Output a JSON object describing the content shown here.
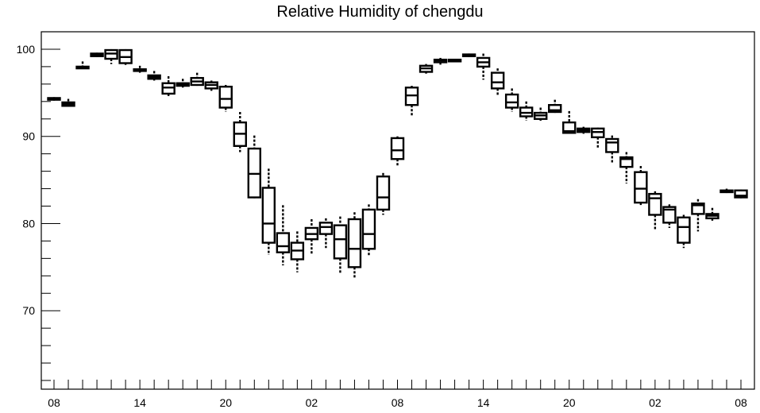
{
  "chart_data": {
    "type": "boxplot",
    "title": "Relative Humidity of chengdu",
    "xlabel": "",
    "ylabel": "",
    "ylim": [
      61,
      102
    ],
    "y_ticks": [
      70,
      80,
      90,
      100
    ],
    "x_tick_labels": [
      "08",
      "14",
      "20",
      "02",
      "08",
      "14",
      "20",
      "02",
      "08"
    ],
    "x_tick_slots": [
      0,
      6,
      12,
      18,
      24,
      30,
      36,
      42,
      48
    ],
    "slot_count": 49,
    "grid": false,
    "boxes": [
      {
        "slot": 0,
        "min": 94.1,
        "q1": 94.2,
        "median": 94.3,
        "q3": 94.4,
        "max": 94.5
      },
      {
        "slot": 1,
        "min": 93.4,
        "q1": 93.5,
        "median": 93.7,
        "q3": 93.9,
        "max": 94.3
      },
      {
        "slot": 2,
        "min": 97.8,
        "q1": 97.8,
        "median": 97.9,
        "q3": 98.0,
        "max": 98.6
      },
      {
        "slot": 3,
        "min": 99.1,
        "q1": 99.2,
        "median": 99.3,
        "q3": 99.5,
        "max": 99.6
      },
      {
        "slot": 4,
        "min": 98.3,
        "q1": 98.9,
        "median": 99.5,
        "q3": 99.9,
        "max": 100.0
      },
      {
        "slot": 5,
        "min": 98.2,
        "q1": 98.4,
        "median": 99.1,
        "q3": 99.9,
        "max": 100.0
      },
      {
        "slot": 6,
        "min": 97.3,
        "q1": 97.5,
        "median": 97.6,
        "q3": 97.7,
        "max": 98.1
      },
      {
        "slot": 7,
        "min": 96.4,
        "q1": 96.6,
        "median": 96.8,
        "q3": 97.0,
        "max": 97.5
      },
      {
        "slot": 8,
        "min": 94.5,
        "q1": 94.9,
        "median": 95.6,
        "q3": 96.1,
        "max": 96.9
      },
      {
        "slot": 9,
        "min": 95.6,
        "q1": 95.8,
        "median": 96.0,
        "q3": 96.1,
        "max": 96.6
      },
      {
        "slot": 10,
        "min": 95.8,
        "q1": 95.9,
        "median": 96.3,
        "q3": 96.7,
        "max": 97.3
      },
      {
        "slot": 11,
        "min": 95.1,
        "q1": 95.5,
        "median": 95.9,
        "q3": 96.2,
        "max": 96.4
      },
      {
        "slot": 12,
        "min": 92.8,
        "q1": 93.3,
        "median": 94.3,
        "q3": 95.7,
        "max": 95.9
      },
      {
        "slot": 13,
        "min": 88.2,
        "q1": 88.9,
        "median": 90.3,
        "q3": 91.6,
        "max": 92.8
      },
      {
        "slot": 14,
        "min": 82.9,
        "q1": 83.0,
        "median": 85.7,
        "q3": 88.6,
        "max": 90.1
      },
      {
        "slot": 15,
        "min": 76.4,
        "q1": 77.8,
        "median": 80.0,
        "q3": 84.1,
        "max": 86.3
      },
      {
        "slot": 16,
        "min": 75.2,
        "q1": 76.7,
        "median": 77.4,
        "q3": 78.9,
        "max": 82.1
      },
      {
        "slot": 17,
        "min": 74.4,
        "q1": 75.9,
        "median": 76.9,
        "q3": 77.8,
        "max": 79.1
      },
      {
        "slot": 18,
        "min": 76.5,
        "q1": 78.2,
        "median": 78.8,
        "q3": 79.5,
        "max": 80.5
      },
      {
        "slot": 19,
        "min": 77.2,
        "q1": 78.8,
        "median": 79.6,
        "q3": 80.1,
        "max": 80.6
      },
      {
        "slot": 20,
        "min": 74.3,
        "q1": 76.0,
        "median": 78.2,
        "q3": 79.8,
        "max": 80.8
      },
      {
        "slot": 21,
        "min": 73.8,
        "q1": 75.0,
        "median": 77.1,
        "q3": 80.5,
        "max": 81.3
      },
      {
        "slot": 22,
        "min": 76.3,
        "q1": 77.1,
        "median": 78.8,
        "q3": 81.6,
        "max": 82.2
      },
      {
        "slot": 23,
        "min": 81.0,
        "q1": 81.6,
        "median": 83.0,
        "q3": 85.4,
        "max": 85.8
      },
      {
        "slot": 24,
        "min": 86.6,
        "q1": 87.4,
        "median": 88.4,
        "q3": 89.8,
        "max": 90.0
      },
      {
        "slot": 25,
        "min": 92.4,
        "q1": 93.6,
        "median": 94.7,
        "q3": 95.6,
        "max": 95.8
      },
      {
        "slot": 26,
        "min": 97.2,
        "q1": 97.4,
        "median": 97.8,
        "q3": 98.1,
        "max": 98.3
      },
      {
        "slot": 27,
        "min": 98.2,
        "q1": 98.5,
        "median": 98.7,
        "q3": 98.8,
        "max": 99.0
      },
      {
        "slot": 28,
        "min": 98.6,
        "q1": 98.6,
        "median": 98.7,
        "q3": 98.8,
        "max": 98.9
      },
      {
        "slot": 29,
        "min": 99.1,
        "q1": 99.2,
        "median": 99.3,
        "q3": 99.4,
        "max": 99.5
      },
      {
        "slot": 30,
        "min": 96.5,
        "q1": 98.0,
        "median": 98.5,
        "q3": 99.0,
        "max": 99.5
      },
      {
        "slot": 31,
        "min": 94.6,
        "q1": 95.5,
        "median": 96.2,
        "q3": 97.3,
        "max": 97.8
      },
      {
        "slot": 32,
        "min": 92.8,
        "q1": 93.3,
        "median": 93.9,
        "q3": 94.8,
        "max": 95.5
      },
      {
        "slot": 33,
        "min": 91.8,
        "q1": 92.3,
        "median": 92.7,
        "q3": 93.3,
        "max": 94.0
      },
      {
        "slot": 34,
        "min": 91.8,
        "q1": 92.0,
        "median": 92.4,
        "q3": 92.7,
        "max": 93.3
      },
      {
        "slot": 35,
        "min": 92.7,
        "q1": 92.8,
        "median": 93.0,
        "q3": 93.6,
        "max": 94.2
      },
      {
        "slot": 36,
        "min": 90.3,
        "q1": 90.4,
        "median": 90.6,
        "q3": 91.6,
        "max": 92.9
      },
      {
        "slot": 37,
        "min": 90.3,
        "q1": 90.5,
        "median": 90.7,
        "q3": 90.9,
        "max": 91.1
      },
      {
        "slot": 38,
        "min": 88.6,
        "q1": 89.9,
        "median": 90.5,
        "q3": 90.9,
        "max": 91.0
      },
      {
        "slot": 39,
        "min": 87.0,
        "q1": 88.2,
        "median": 89.3,
        "q3": 89.7,
        "max": 90.1
      },
      {
        "slot": 40,
        "min": 84.6,
        "q1": 86.5,
        "median": 87.4,
        "q3": 87.6,
        "max": 88.2
      },
      {
        "slot": 41,
        "min": 82.1,
        "q1": 82.4,
        "median": 84.0,
        "q3": 85.9,
        "max": 86.6
      },
      {
        "slot": 42,
        "min": 79.3,
        "q1": 81.0,
        "median": 82.9,
        "q3": 83.4,
        "max": 83.7
      },
      {
        "slot": 43,
        "min": 79.5,
        "q1": 80.1,
        "median": 81.6,
        "q3": 81.9,
        "max": 82.2
      },
      {
        "slot": 44,
        "min": 77.2,
        "q1": 77.8,
        "median": 79.6,
        "q3": 80.7,
        "max": 81.0
      },
      {
        "slot": 45,
        "min": 79.1,
        "q1": 81.1,
        "median": 82.1,
        "q3": 82.3,
        "max": 82.8
      },
      {
        "slot": 46,
        "min": 80.2,
        "q1": 80.6,
        "median": 80.9,
        "q3": 81.1,
        "max": 81.8
      },
      {
        "slot": 47,
        "min": 83.5,
        "q1": 83.6,
        "median": 83.7,
        "q3": 83.8,
        "max": 84.0
      },
      {
        "slot": 48,
        "min": 82.9,
        "q1": 83.0,
        "median": 83.2,
        "q3": 83.8,
        "max": 83.9
      }
    ]
  }
}
